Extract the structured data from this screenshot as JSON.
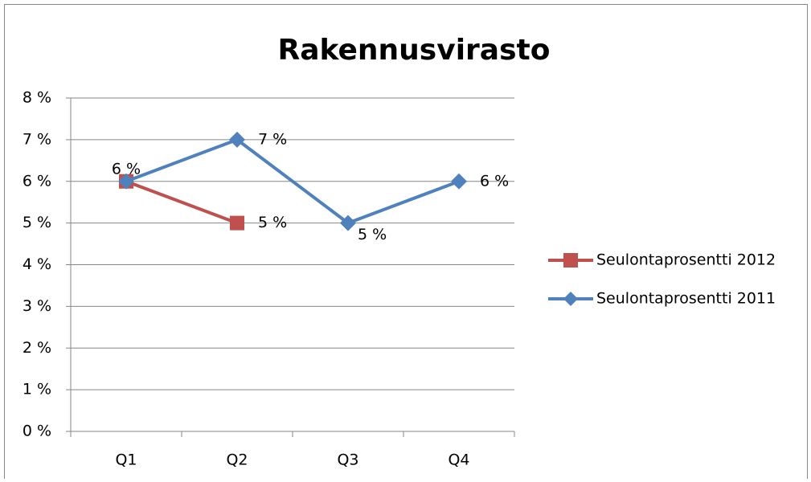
{
  "chart_data": {
    "type": "line",
    "title": "Rakennusvirasto",
    "categories": [
      "Q1",
      "Q2",
      "Q3",
      "Q4"
    ],
    "series": [
      {
        "name": "Seulontaprosentti 2012",
        "color": "#c0504d",
        "marker": "square",
        "values": [
          6,
          5,
          null,
          null
        ],
        "value_labels": [
          "6 %",
          "5 %",
          null,
          null
        ]
      },
      {
        "name": "Seulontaprosentti 2011",
        "color": "#4f81bd",
        "marker": "diamond",
        "values": [
          6,
          7,
          5,
          6
        ],
        "value_labels": [
          null,
          "7 %",
          "5 %",
          "6 %"
        ]
      }
    ],
    "ylim": [
      0,
      8
    ],
    "yticks": [
      {
        "value": 0,
        "label": "0 %"
      },
      {
        "value": 1,
        "label": "1 %"
      },
      {
        "value": 2,
        "label": "2 %"
      },
      {
        "value": 3,
        "label": "3 %"
      },
      {
        "value": 4,
        "label": "4 %"
      },
      {
        "value": 5,
        "label": "5 %"
      },
      {
        "value": 6,
        "label": "6 %"
      },
      {
        "value": 7,
        "label": "7 %"
      },
      {
        "value": 8,
        "label": "8 %"
      }
    ],
    "grid": true,
    "legend": "right"
  }
}
